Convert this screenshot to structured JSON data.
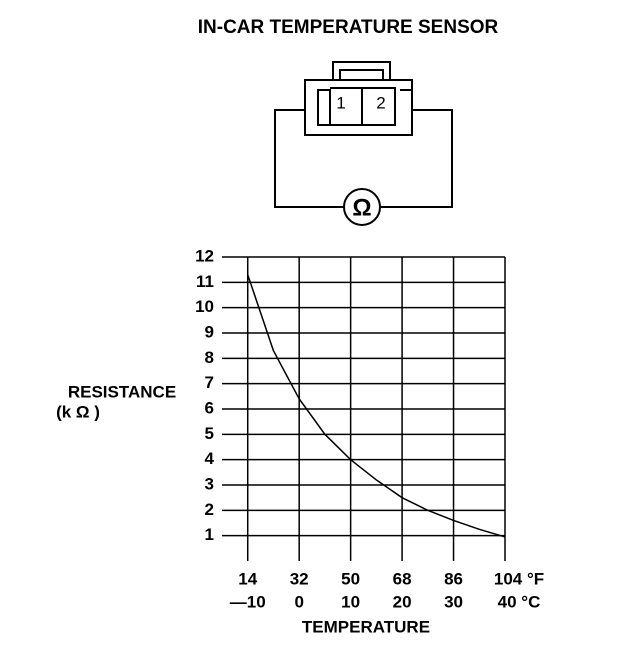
{
  "title": "IN-CAR TEMPERATURE SENSOR",
  "diagram": {
    "pins": [
      "1",
      "2"
    ],
    "meter": "Ω"
  },
  "chart_data": {
    "type": "line",
    "ylabel": "RESISTANCE",
    "yunit": "(k Ω )",
    "xlabel": "TEMPERATURE",
    "x": [
      -10,
      -5,
      0,
      5,
      10,
      15,
      20,
      25,
      30,
      35,
      40
    ],
    "series": [
      {
        "name": "Resistance",
        "color": "#000000",
        "values": [
          11.3,
          8.3,
          6.4,
          5.0,
          4.0,
          3.2,
          2.5,
          2.0,
          1.6,
          1.25,
          0.95
        ]
      }
    ],
    "xlim": [
      -15,
      40
    ],
    "ylim": [
      0,
      12
    ],
    "xticks": [
      {
        "value": -10,
        "label": "—10"
      },
      0,
      10,
      20,
      30,
      {
        "value": 40,
        "label": "40 °C"
      }
    ],
    "xticks_f": [
      {
        "value": -10,
        "label": "14"
      },
      {
        "value": 0,
        "label": "32"
      },
      {
        "value": 10,
        "label": "50"
      },
      {
        "value": 20,
        "label": "68"
      },
      {
        "value": 30,
        "label": "86"
      },
      {
        "value": 40,
        "label": "104 °F"
      }
    ],
    "yticks": [
      1,
      2,
      3,
      4,
      5,
      6,
      7,
      8,
      9,
      10,
      11,
      12
    ],
    "grid": true
  }
}
